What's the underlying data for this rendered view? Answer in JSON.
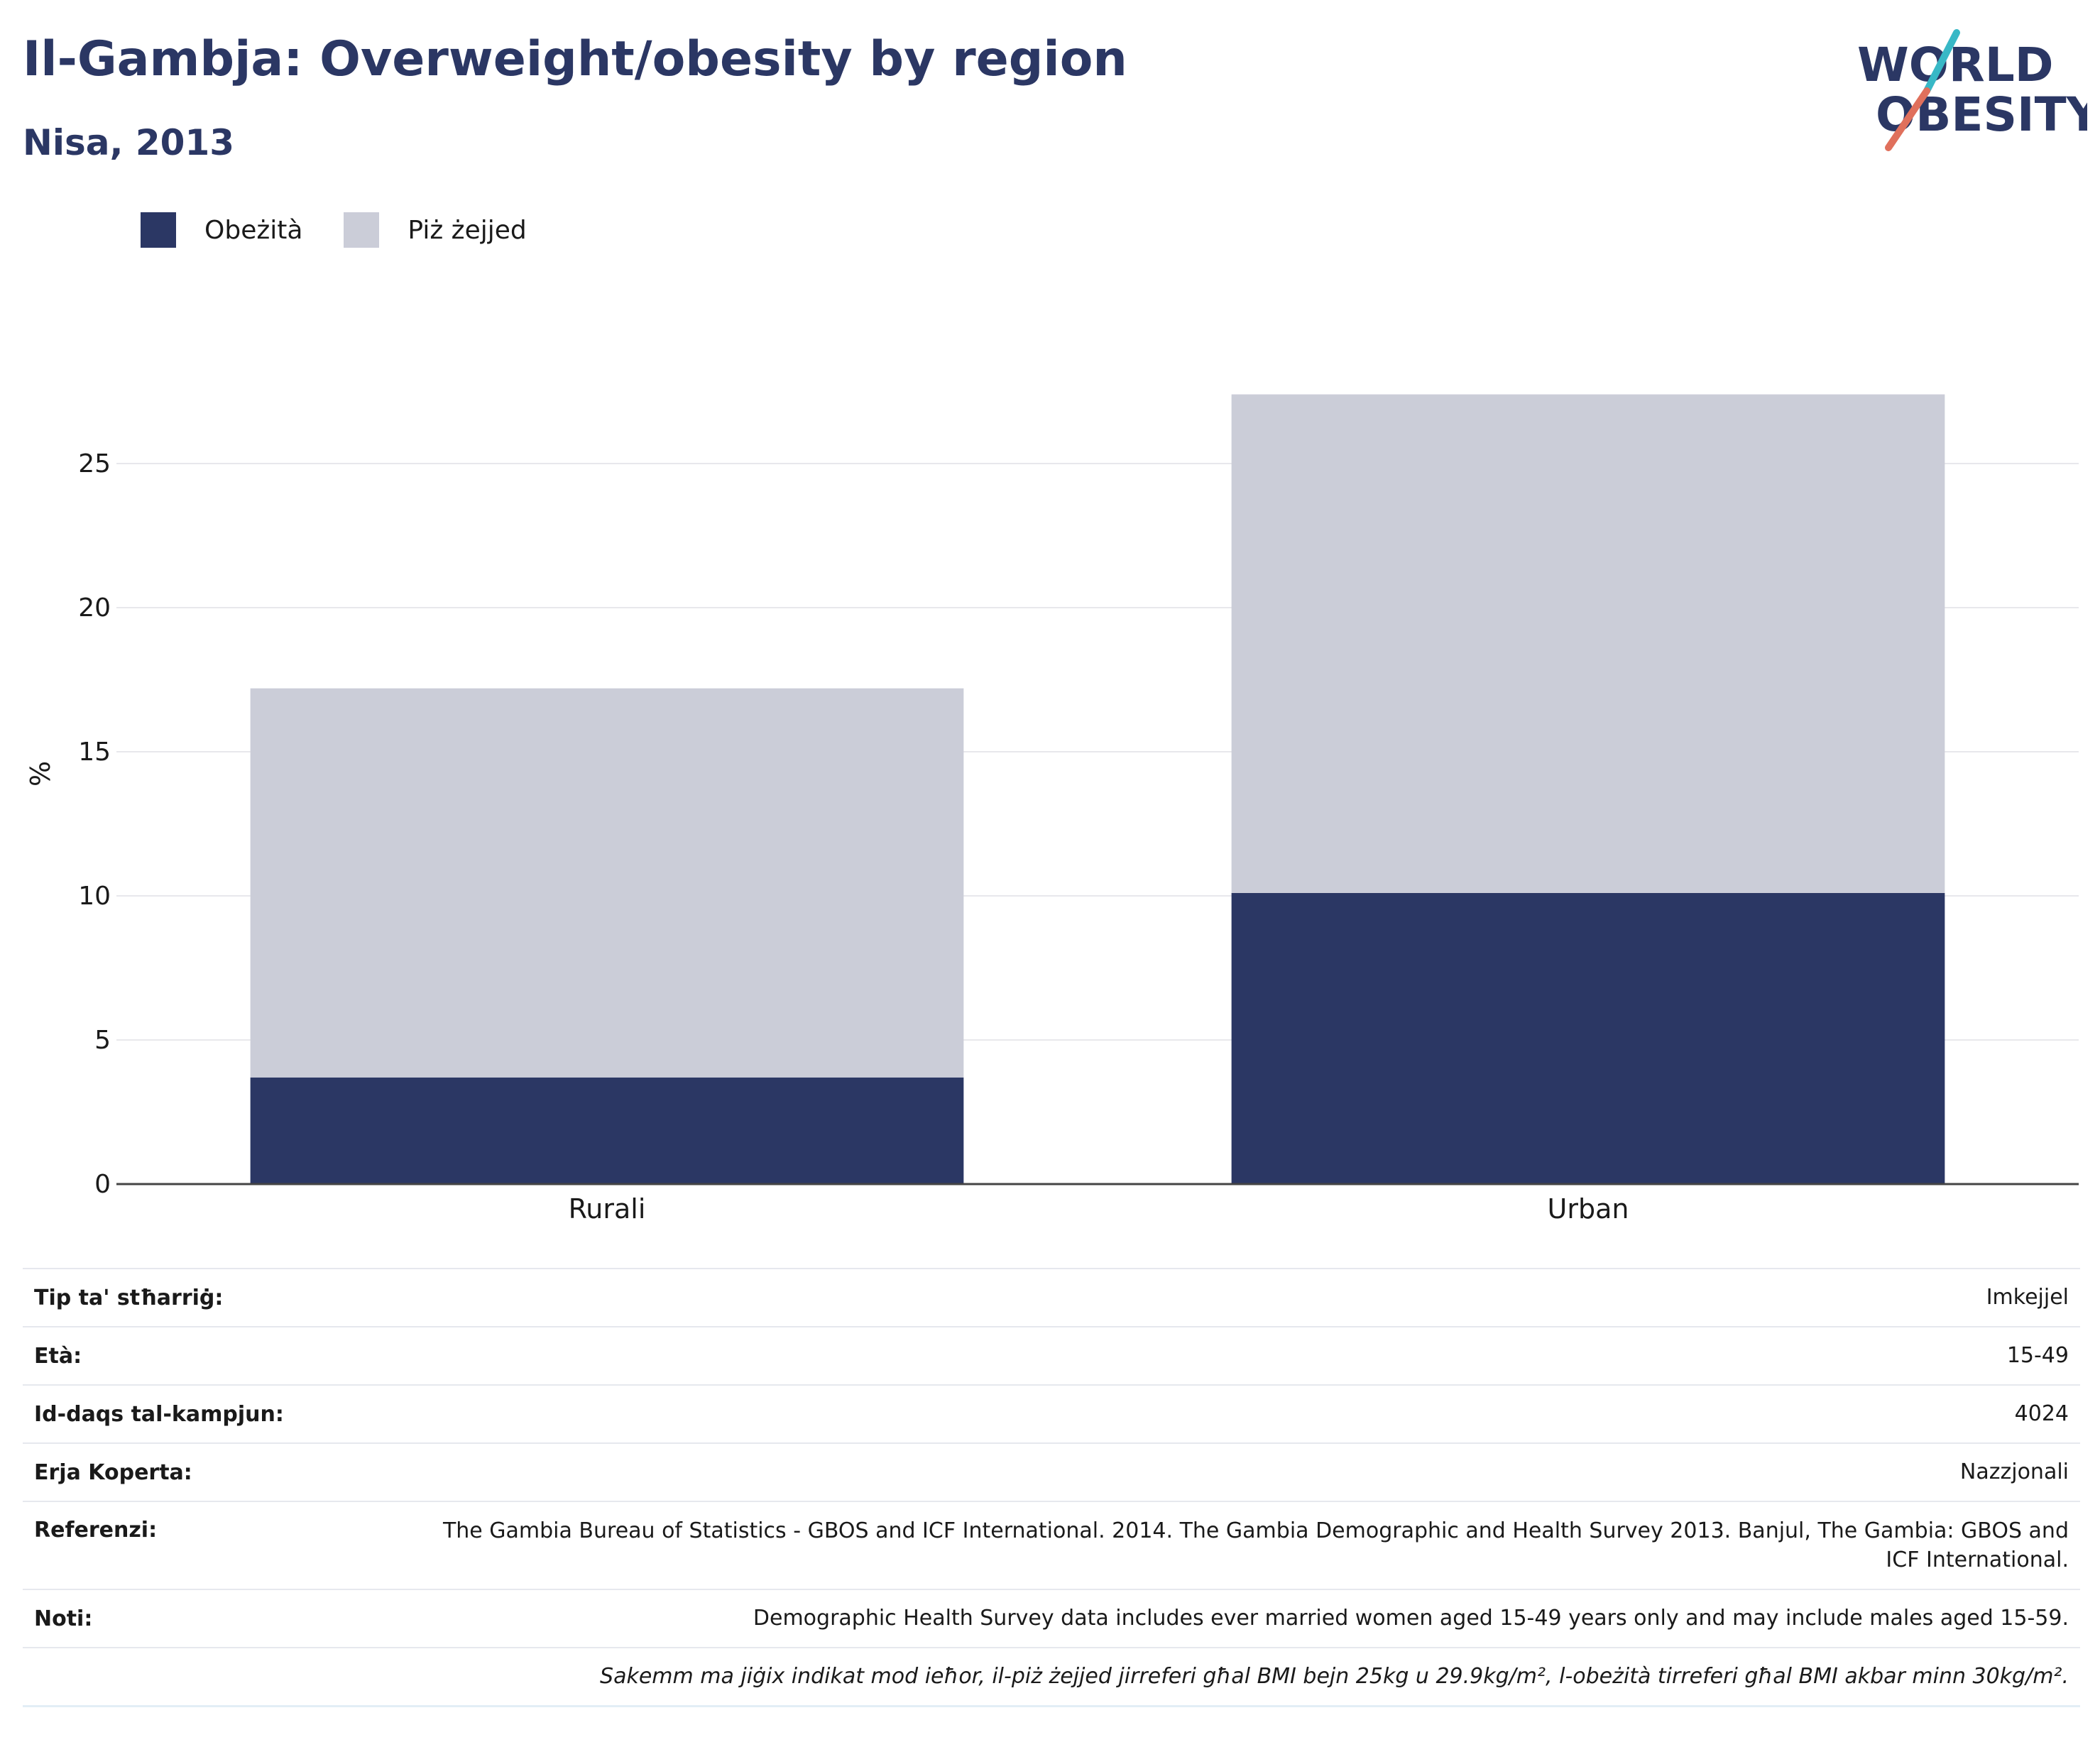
{
  "header": {
    "title": "Il-Gambja: Overweight/obesity by region",
    "subtitle": "Nisa, 2013"
  },
  "logo": {
    "line1": "WORLD",
    "line2": "OBESITY"
  },
  "legend": [
    {
      "label": "Obeżità",
      "color": "#2b3764"
    },
    {
      "label": "Piż żejjed",
      "color": "#cbcdd8"
    }
  ],
  "chart_data": {
    "type": "bar",
    "stacked": true,
    "categories": [
      "Rurali",
      "Urban"
    ],
    "series": [
      {
        "name": "Obeżità",
        "values": [
          3.7,
          10.1
        ],
        "color": "#2b3764"
      },
      {
        "name": "Piż żejjed",
        "values": [
          13.5,
          17.3
        ],
        "color": "#cbcdd8"
      }
    ],
    "ylabel": "%",
    "ylim": [
      0,
      28
    ],
    "yticks": [
      0,
      5,
      10,
      15,
      20,
      25
    ],
    "grid": true,
    "legend_position": "top-left"
  },
  "info_rows": [
    {
      "label": "Tip ta' stħarriġ:",
      "value": "Imkejjel"
    },
    {
      "label": "Età:",
      "value": "15-49"
    },
    {
      "label": "Id-daqs tal-kampjun:",
      "value": "4024"
    },
    {
      "label": "Erja Koperta:",
      "value": "Nazzjonali"
    },
    {
      "label": "Referenzi:",
      "value": "The Gambia Bureau of Statistics - GBOS and ICF International. 2014. The Gambia Demographic and Health Survey 2013. Banjul, The Gambia: GBOS and ICF International."
    },
    {
      "label": "Noti:",
      "value": "Demographic Health Survey data includes ever married women aged 15-49 years only and may include males aged 15-59."
    },
    {
      "label": "",
      "value": "Sakemm ma jiġix indikat mod ieħor, il-piż żejjed jirreferi għal BMI bejn 25kg u 29.9kg/m², l-obeżità tirreferi għal BMI akbar minn 30kg/m²."
    }
  ]
}
